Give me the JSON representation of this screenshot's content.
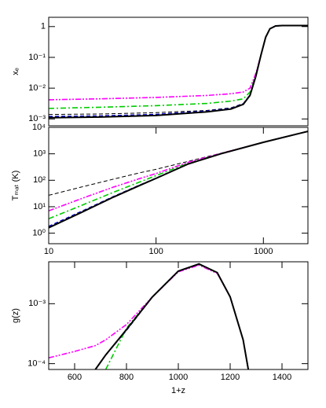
{
  "chart_data": [
    {
      "type": "line",
      "ylabel": "xₑ",
      "xlog": true,
      "ylog": true,
      "xlim": [
        10,
        2600
      ],
      "ylim": [
        0.0006,
        2
      ],
      "yticks": [
        1,
        {
          "value": 0.1,
          "label": "10⁻¹"
        },
        {
          "value": 0.01,
          "label": "10⁻²"
        },
        {
          "value": 0.001,
          "label": "10⁻³"
        }
      ],
      "x": [
        10,
        30,
        100,
        300,
        500,
        650,
        750,
        850,
        950,
        1050,
        1150,
        1300,
        1500,
        2000,
        2600
      ],
      "series": [
        {
          "color": "#000000",
          "linestyle": "dashed-thin",
          "values": [
            0.0014,
            0.00145,
            0.0016,
            0.0019,
            0.0023,
            0.0032,
            0.006,
            0.025,
            0.12,
            0.45,
            0.85,
            1.05,
            1.08,
            1.08,
            1.08
          ]
        },
        {
          "color": "#0000cc",
          "linestyle": "dashed",
          "values": [
            0.0012,
            0.00125,
            0.0014,
            0.0018,
            0.0022,
            0.0031,
            0.006,
            0.025,
            0.12,
            0.45,
            0.85,
            1.05,
            1.08,
            1.08,
            1.08
          ]
        },
        {
          "color": "#00cc00",
          "linestyle": "dashdot",
          "values": [
            0.0022,
            0.0024,
            0.0027,
            0.0032,
            0.0038,
            0.0045,
            0.0075,
            0.027,
            0.12,
            0.45,
            0.85,
            1.05,
            1.08,
            1.08,
            1.08
          ]
        },
        {
          "color": "#ff00ff",
          "linestyle": "dashdotdot",
          "values": [
            0.0042,
            0.0045,
            0.005,
            0.0058,
            0.0066,
            0.0075,
            0.01,
            0.03,
            0.12,
            0.45,
            0.85,
            1.05,
            1.08,
            1.08,
            1.08
          ]
        },
        {
          "color": "#000000",
          "linestyle": "solid",
          "values": [
            0.0011,
            0.00115,
            0.0013,
            0.0017,
            0.0021,
            0.003,
            0.0058,
            0.024,
            0.12,
            0.45,
            0.85,
            1.05,
            1.08,
            1.08,
            1.08
          ]
        }
      ]
    },
    {
      "type": "line",
      "ylabel": "Tₘₐₜ (K)",
      "xlog": true,
      "ylog": true,
      "xlim": [
        10,
        2600
      ],
      "ylim": [
        0.4,
        10000
      ],
      "xticks": [
        10,
        100,
        1000
      ],
      "yticks": [
        {
          "value": 1,
          "label": "10⁰"
        },
        {
          "value": 10,
          "label": "10¹"
        },
        {
          "value": 100,
          "label": "10²"
        },
        {
          "value": 1000,
          "label": "10³"
        },
        {
          "value": 10000,
          "label": "10⁴"
        }
      ],
      "x": [
        10,
        20,
        40,
        70,
        100,
        200,
        400,
        1000,
        2600
      ],
      "series": [
        {
          "color": "#000000",
          "linestyle": "dashed-thin",
          "values": [
            27,
            55,
            110,
            190,
            260,
            520,
            1050,
            2725,
            7085
          ]
        },
        {
          "color": "#0000cc",
          "linestyle": "dashed",
          "values": [
            1.8,
            6.5,
            24,
            65,
            120,
            420,
            1000,
            2725,
            7085
          ]
        },
        {
          "color": "#00cc00",
          "linestyle": "dashdot",
          "values": [
            3.5,
            11,
            35,
            85,
            150,
            450,
            1020,
            2725,
            7085
          ]
        },
        {
          "color": "#ff00ff",
          "linestyle": "dashdotdot",
          "values": [
            7,
            20,
            55,
            115,
            180,
            480,
            1030,
            2725,
            7085
          ]
        },
        {
          "color": "#000000",
          "linestyle": "solid",
          "values": [
            1.6,
            6,
            23,
            63,
            118,
            415,
            1000,
            2725,
            7085
          ]
        }
      ]
    },
    {
      "type": "line",
      "ylabel": "g(z)",
      "xlabel": "1+z",
      "xlog": false,
      "ylog": true,
      "xlim": [
        500,
        1500
      ],
      "ylim": [
        8e-05,
        0.005
      ],
      "xticks": [
        600,
        800,
        1000,
        1200,
        1400
      ],
      "yticks": [
        {
          "value": 0.001,
          "label": "10⁻³"
        },
        {
          "value": 0.0001,
          "label": "10⁻⁴"
        }
      ],
      "x": [
        500,
        600,
        680,
        720,
        800,
        900,
        1000,
        1080,
        1150,
        1200,
        1250,
        1270
      ],
      "series": [
        {
          "color": "#0000cc",
          "linestyle": "dashed",
          "values": [
            null,
            null,
            8e-05,
            0.00014,
            0.00036,
            0.0013,
            0.0035,
            0.0046,
            0.0033,
            0.0013,
            0.00025,
            8e-05
          ]
        },
        {
          "color": "#00cc00",
          "linestyle": "dashdot",
          "values": [
            null,
            null,
            null,
            8e-05,
            0.00039,
            0.0013,
            0.0035,
            0.0045,
            0.0033,
            0.0013,
            0.00025,
            8e-05
          ]
        },
        {
          "color": "#ff00ff",
          "linestyle": "dashdotdot",
          "values": [
            0.000125,
            0.00016,
            0.0002,
            0.00025,
            0.00045,
            0.0013,
            0.0034,
            0.0044,
            0.0032,
            0.0013,
            0.00025,
            8e-05
          ]
        },
        {
          "color": "#000000",
          "linestyle": "solid",
          "values": [
            null,
            null,
            8e-05,
            0.00014,
            0.00037,
            0.0013,
            0.0035,
            0.0046,
            0.0033,
            0.0013,
            0.00025,
            8e-05
          ]
        }
      ]
    }
  ]
}
